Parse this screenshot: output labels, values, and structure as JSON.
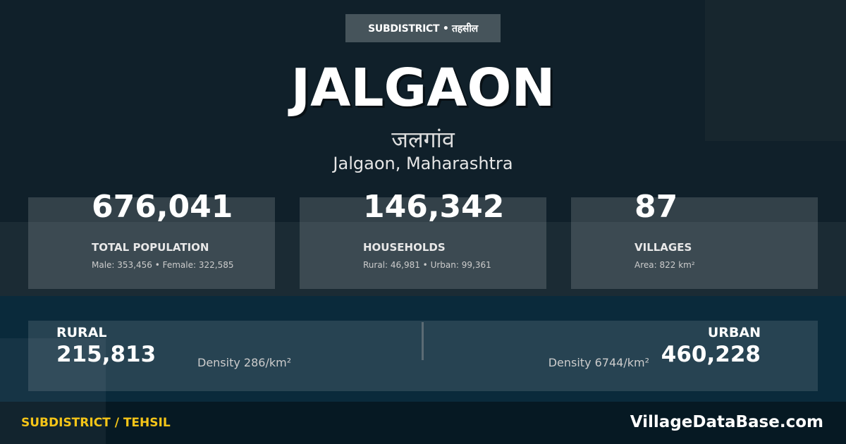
{
  "badge": "SUBDISTRICT • तहसील",
  "title": "JALGAON",
  "local_name": "जलगांव",
  "location": "Jalgaon, Maharashtra",
  "stats": [
    {
      "value": "676,041",
      "label": "TOTAL POPULATION",
      "sub": "Male: 353,456 • Female: 322,585"
    },
    {
      "value": "146,342",
      "label": "HOUSEHOLDS",
      "sub": "Rural: 46,981 • Urban: 99,361"
    },
    {
      "value": "87",
      "label": "VILLAGES",
      "sub": "Area: 822 km²"
    }
  ],
  "rural": {
    "label": "RURAL",
    "value": "215,813",
    "density": "Density 286/km²"
  },
  "urban": {
    "label": "URBAN",
    "value": "460,228",
    "density": "Density 6744/km²"
  },
  "footer": {
    "left": "SUBDISTRICT / TEHSIL",
    "right": "VillageDataBase.com"
  },
  "colors": {
    "accent": "#f5c518",
    "background": "#10202a"
  }
}
